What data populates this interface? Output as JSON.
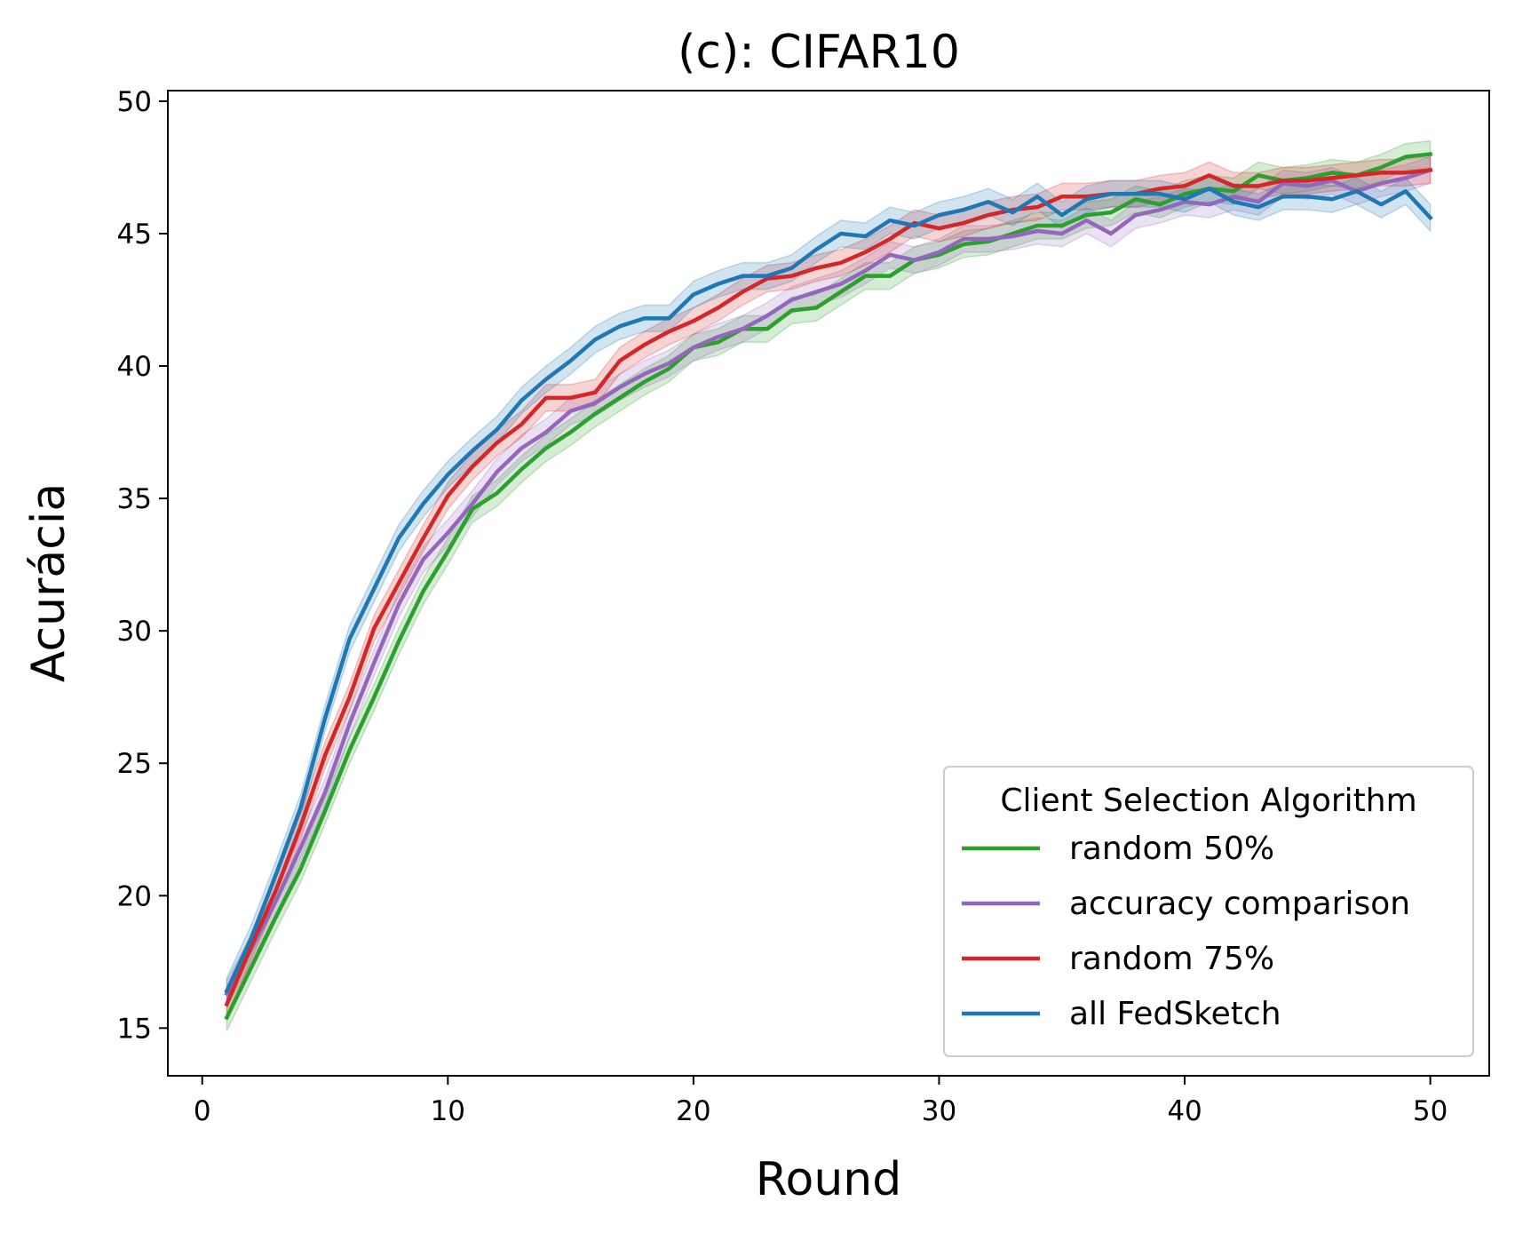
{
  "chart_data": {
    "type": "line",
    "title": "(c): CIFAR10",
    "xlabel": "Round",
    "ylabel": "Acurácia",
    "xlim": [
      -1.4,
      52.4
    ],
    "ylim": [
      13.2,
      50.4
    ],
    "xticks": [
      0,
      10,
      20,
      30,
      40,
      50
    ],
    "yticks": [
      15,
      20,
      25,
      30,
      35,
      40,
      45,
      50
    ],
    "grid": false,
    "legend": {
      "title": "Client Selection Algorithm",
      "placement": "lower-right"
    },
    "x": [
      1,
      2,
      3,
      4,
      5,
      6,
      7,
      8,
      9,
      10,
      11,
      12,
      13,
      14,
      15,
      16,
      17,
      18,
      19,
      20,
      21,
      22,
      23,
      24,
      25,
      26,
      27,
      28,
      29,
      30,
      31,
      32,
      33,
      34,
      35,
      36,
      37,
      38,
      39,
      40,
      41,
      42,
      43,
      44,
      45,
      46,
      47,
      48,
      49,
      50
    ],
    "band_halfwidth": 0.5,
    "series": [
      {
        "name": "random 50%",
        "color": "#2ca02c",
        "values": [
          15.4,
          17.3,
          19.2,
          21.0,
          23.2,
          25.5,
          27.5,
          29.6,
          31.5,
          33.0,
          34.6,
          35.2,
          36.1,
          36.9,
          37.5,
          38.2,
          38.8,
          39.4,
          39.9,
          40.7,
          40.9,
          41.4,
          41.4,
          42.1,
          42.2,
          42.8,
          43.4,
          43.4,
          44.0,
          44.2,
          44.6,
          44.7,
          45.0,
          45.3,
          45.3,
          45.7,
          45.8,
          46.3,
          46.1,
          46.5,
          46.7,
          46.6,
          47.2,
          47.0,
          47.1,
          47.3,
          47.2,
          47.5,
          47.9,
          48.0
        ]
      },
      {
        "name": "accuracy comparison",
        "color": "#9467bd",
        "values": [
          16.3,
          18.0,
          19.8,
          21.8,
          23.9,
          26.5,
          28.8,
          31.0,
          32.7,
          33.7,
          34.8,
          36.0,
          36.9,
          37.5,
          38.3,
          38.6,
          39.2,
          39.7,
          40.1,
          40.7,
          41.1,
          41.4,
          41.9,
          42.5,
          42.8,
          43.1,
          43.6,
          44.2,
          44.0,
          44.3,
          44.8,
          44.8,
          44.9,
          45.1,
          45.0,
          45.5,
          45.0,
          45.7,
          45.9,
          46.2,
          46.1,
          46.4,
          46.2,
          46.9,
          46.8,
          47.0,
          46.6,
          46.9,
          47.1,
          47.4
        ]
      },
      {
        "name": "random 75%",
        "color": "#d62728",
        "values": [
          15.9,
          18.1,
          20.2,
          22.6,
          25.3,
          27.5,
          30.1,
          31.8,
          33.5,
          35.1,
          36.2,
          37.1,
          37.8,
          38.8,
          38.8,
          39.0,
          40.2,
          40.8,
          41.3,
          41.7,
          42.2,
          42.8,
          43.3,
          43.4,
          43.7,
          43.9,
          44.3,
          44.8,
          45.4,
          45.2,
          45.4,
          45.7,
          45.9,
          46.0,
          46.4,
          46.4,
          46.5,
          46.5,
          46.7,
          46.8,
          47.2,
          46.8,
          46.8,
          47.0,
          47.0,
          47.1,
          47.2,
          47.3,
          47.3,
          47.4
        ]
      },
      {
        "name": "all FedSketch",
        "color": "#1f77b4",
        "values": [
          16.4,
          18.4,
          20.8,
          23.3,
          26.7,
          29.7,
          31.6,
          33.5,
          34.8,
          35.9,
          36.8,
          37.6,
          38.7,
          39.5,
          40.2,
          41.0,
          41.5,
          41.8,
          41.8,
          42.7,
          43.1,
          43.4,
          43.4,
          43.7,
          44.4,
          45.0,
          44.9,
          45.5,
          45.3,
          45.7,
          45.9,
          46.2,
          45.8,
          46.4,
          45.7,
          46.3,
          46.5,
          46.5,
          46.5,
          46.3,
          46.7,
          46.2,
          46.0,
          46.4,
          46.4,
          46.3,
          46.6,
          46.1,
          46.6,
          45.6
        ]
      }
    ]
  }
}
